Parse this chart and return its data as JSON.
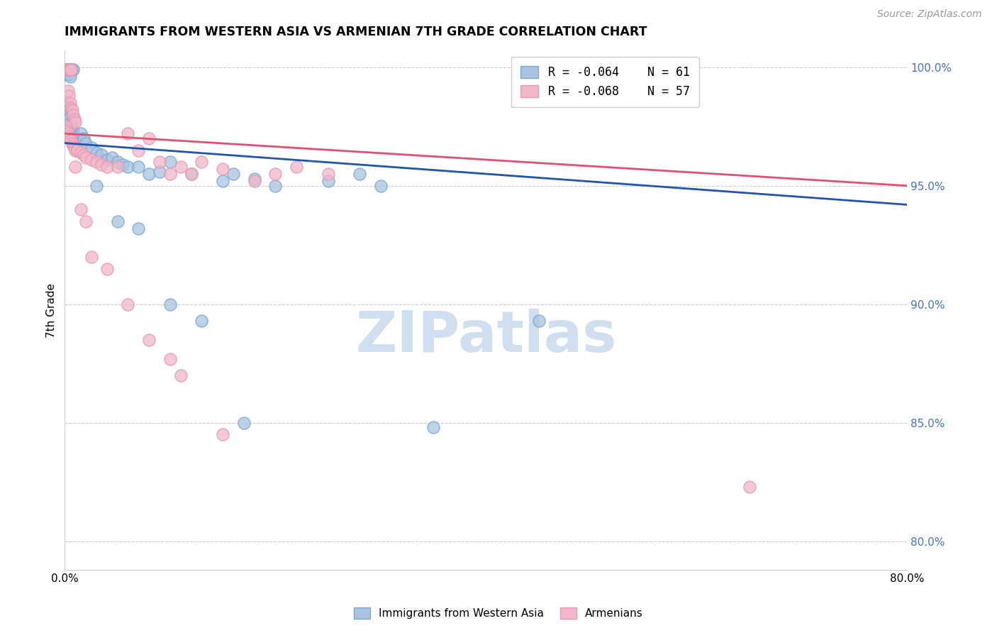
{
  "title": "IMMIGRANTS FROM WESTERN ASIA VS ARMENIAN 7TH GRADE CORRELATION CHART",
  "source": "Source: ZipAtlas.com",
  "ylabel": "7th Grade",
  "xlim": [
    0.0,
    0.8
  ],
  "ylim": [
    0.788,
    1.007
  ],
  "right_yticks": [
    0.8,
    0.85,
    0.9,
    0.95,
    1.0
  ],
  "right_yticklabels": [
    "80.0%",
    "85.0%",
    "90.0%",
    "95.0%",
    "100.0%"
  ],
  "xticks": [
    0.0,
    0.1,
    0.2,
    0.3,
    0.4,
    0.5,
    0.6,
    0.7,
    0.8
  ],
  "xticklabels": [
    "0.0%",
    "",
    "",
    "",
    "",
    "",
    "",
    "",
    "80.0%"
  ],
  "blue_color": "#A8C4E0",
  "pink_color": "#F0B8C8",
  "blue_edge_color": "#7BA7D4",
  "pink_edge_color": "#E898B0",
  "blue_line_color": "#2255AA",
  "pink_line_color": "#E05070",
  "legend_R_blue": "R = -0.064",
  "legend_N_blue": "N = 61",
  "legend_R_pink": "R = -0.068",
  "legend_N_pink": "N = 57",
  "watermark": "ZIPatlas",
  "watermark_color": "#D0DFEF",
  "background_color": "#FFFFFF",
  "blue_scatter": [
    [
      0.001,
      0.999
    ],
    [
      0.002,
      0.999
    ],
    [
      0.003,
      0.999
    ],
    [
      0.004,
      0.999
    ],
    [
      0.005,
      0.999
    ],
    [
      0.006,
      0.999
    ],
    [
      0.007,
      0.999
    ],
    [
      0.008,
      0.999
    ],
    [
      0.002,
      0.997
    ],
    [
      0.003,
      0.997
    ],
    [
      0.004,
      0.997
    ],
    [
      0.005,
      0.996
    ],
    [
      0.001,
      0.985
    ],
    [
      0.002,
      0.983
    ],
    [
      0.003,
      0.982
    ],
    [
      0.003,
      0.98
    ],
    [
      0.004,
      0.979
    ],
    [
      0.004,
      0.978
    ],
    [
      0.005,
      0.976
    ],
    [
      0.005,
      0.975
    ],
    [
      0.006,
      0.977
    ],
    [
      0.006,
      0.975
    ],
    [
      0.007,
      0.974
    ],
    [
      0.007,
      0.973
    ],
    [
      0.008,
      0.972
    ],
    [
      0.008,
      0.971
    ],
    [
      0.009,
      0.97
    ],
    [
      0.01,
      0.969
    ],
    [
      0.01,
      0.967
    ],
    [
      0.012,
      0.968
    ],
    [
      0.015,
      0.972
    ],
    [
      0.018,
      0.97
    ],
    [
      0.02,
      0.968
    ],
    [
      0.025,
      0.966
    ],
    [
      0.03,
      0.964
    ],
    [
      0.035,
      0.963
    ],
    [
      0.04,
      0.961
    ],
    [
      0.045,
      0.962
    ],
    [
      0.05,
      0.96
    ],
    [
      0.055,
      0.959
    ],
    [
      0.06,
      0.958
    ],
    [
      0.07,
      0.958
    ],
    [
      0.08,
      0.955
    ],
    [
      0.09,
      0.956
    ],
    [
      0.1,
      0.96
    ],
    [
      0.12,
      0.955
    ],
    [
      0.15,
      0.952
    ],
    [
      0.16,
      0.955
    ],
    [
      0.18,
      0.953
    ],
    [
      0.2,
      0.95
    ],
    [
      0.25,
      0.952
    ],
    [
      0.28,
      0.955
    ],
    [
      0.3,
      0.95
    ],
    [
      0.03,
      0.95
    ],
    [
      0.05,
      0.935
    ],
    [
      0.07,
      0.932
    ],
    [
      0.1,
      0.9
    ],
    [
      0.13,
      0.893
    ],
    [
      0.17,
      0.85
    ],
    [
      0.35,
      0.848
    ],
    [
      0.45,
      0.893
    ]
  ],
  "pink_scatter": [
    [
      0.001,
      0.999
    ],
    [
      0.002,
      0.999
    ],
    [
      0.003,
      0.999
    ],
    [
      0.004,
      0.999
    ],
    [
      0.005,
      0.999
    ],
    [
      0.006,
      0.999
    ],
    [
      0.003,
      0.99
    ],
    [
      0.004,
      0.988
    ],
    [
      0.005,
      0.985
    ],
    [
      0.006,
      0.983
    ],
    [
      0.007,
      0.982
    ],
    [
      0.008,
      0.98
    ],
    [
      0.009,
      0.978
    ],
    [
      0.01,
      0.977
    ],
    [
      0.001,
      0.975
    ],
    [
      0.002,
      0.973
    ],
    [
      0.003,
      0.972
    ],
    [
      0.004,
      0.971
    ],
    [
      0.005,
      0.97
    ],
    [
      0.006,
      0.969
    ],
    [
      0.007,
      0.968
    ],
    [
      0.008,
      0.967
    ],
    [
      0.009,
      0.966
    ],
    [
      0.01,
      0.965
    ],
    [
      0.012,
      0.965
    ],
    [
      0.015,
      0.964
    ],
    [
      0.018,
      0.963
    ],
    [
      0.02,
      0.962
    ],
    [
      0.025,
      0.961
    ],
    [
      0.03,
      0.96
    ],
    [
      0.035,
      0.959
    ],
    [
      0.04,
      0.958
    ],
    [
      0.05,
      0.958
    ],
    [
      0.06,
      0.972
    ],
    [
      0.07,
      0.965
    ],
    [
      0.08,
      0.97
    ],
    [
      0.09,
      0.96
    ],
    [
      0.1,
      0.955
    ],
    [
      0.11,
      0.958
    ],
    [
      0.12,
      0.955
    ],
    [
      0.13,
      0.96
    ],
    [
      0.15,
      0.957
    ],
    [
      0.18,
      0.952
    ],
    [
      0.2,
      0.955
    ],
    [
      0.22,
      0.958
    ],
    [
      0.25,
      0.955
    ],
    [
      0.01,
      0.958
    ],
    [
      0.015,
      0.94
    ],
    [
      0.02,
      0.935
    ],
    [
      0.025,
      0.92
    ],
    [
      0.04,
      0.915
    ],
    [
      0.06,
      0.9
    ],
    [
      0.08,
      0.885
    ],
    [
      0.1,
      0.877
    ],
    [
      0.11,
      0.87
    ],
    [
      0.15,
      0.845
    ],
    [
      0.65,
      0.823
    ]
  ],
  "blue_trend_x": [
    0.0,
    0.8
  ],
  "blue_trend_y": [
    0.968,
    0.942
  ],
  "pink_trend_x": [
    0.0,
    0.8
  ],
  "pink_trend_y": [
    0.972,
    0.95
  ]
}
